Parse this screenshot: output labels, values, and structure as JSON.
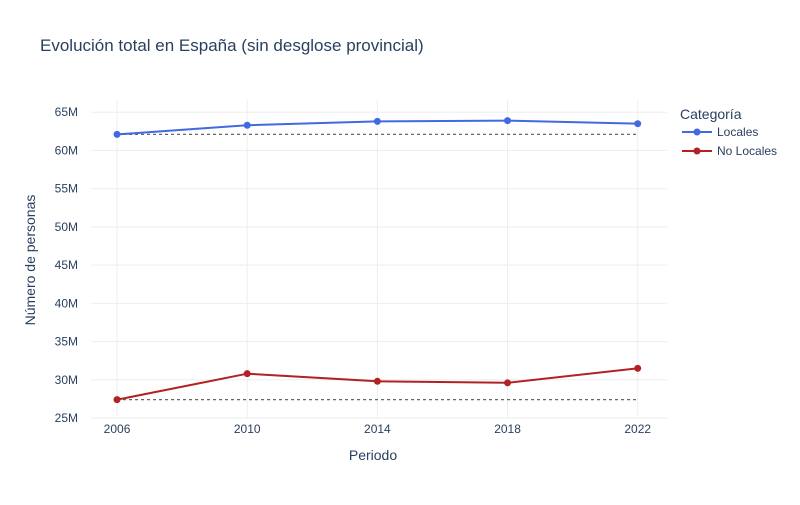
{
  "chart_data": {
    "type": "line",
    "title": "Evolución total en España (sin desglose provincial)",
    "xlabel": "Periodo",
    "ylabel": "Número de personas",
    "x": [
      2006,
      2010,
      2014,
      2018,
      2022
    ],
    "xticks": [
      2006,
      2010,
      2014,
      2018,
      2022
    ],
    "xlim": [
      2005.2,
      2022.9
    ],
    "ylim": [
      25000000,
      66600000
    ],
    "yticks": [
      25000000,
      30000000,
      35000000,
      40000000,
      45000000,
      50000000,
      55000000,
      60000000,
      65000000
    ],
    "ytick_labels": [
      "25M",
      "30M",
      "35M",
      "40M",
      "45M",
      "50M",
      "55M",
      "60M",
      "65M"
    ],
    "grid": true,
    "legend_title": "Categoría",
    "legend_position": "top-right",
    "series": [
      {
        "name": "Locales",
        "color": "#4169e1",
        "values": [
          62100000,
          63300000,
          63800000,
          63900000,
          63500000
        ],
        "reference_line": 62100000
      },
      {
        "name": "No Locales",
        "color": "#b22222",
        "values": [
          27400000,
          30800000,
          29800000,
          29600000,
          31500000
        ],
        "reference_line": 27400000
      }
    ]
  }
}
